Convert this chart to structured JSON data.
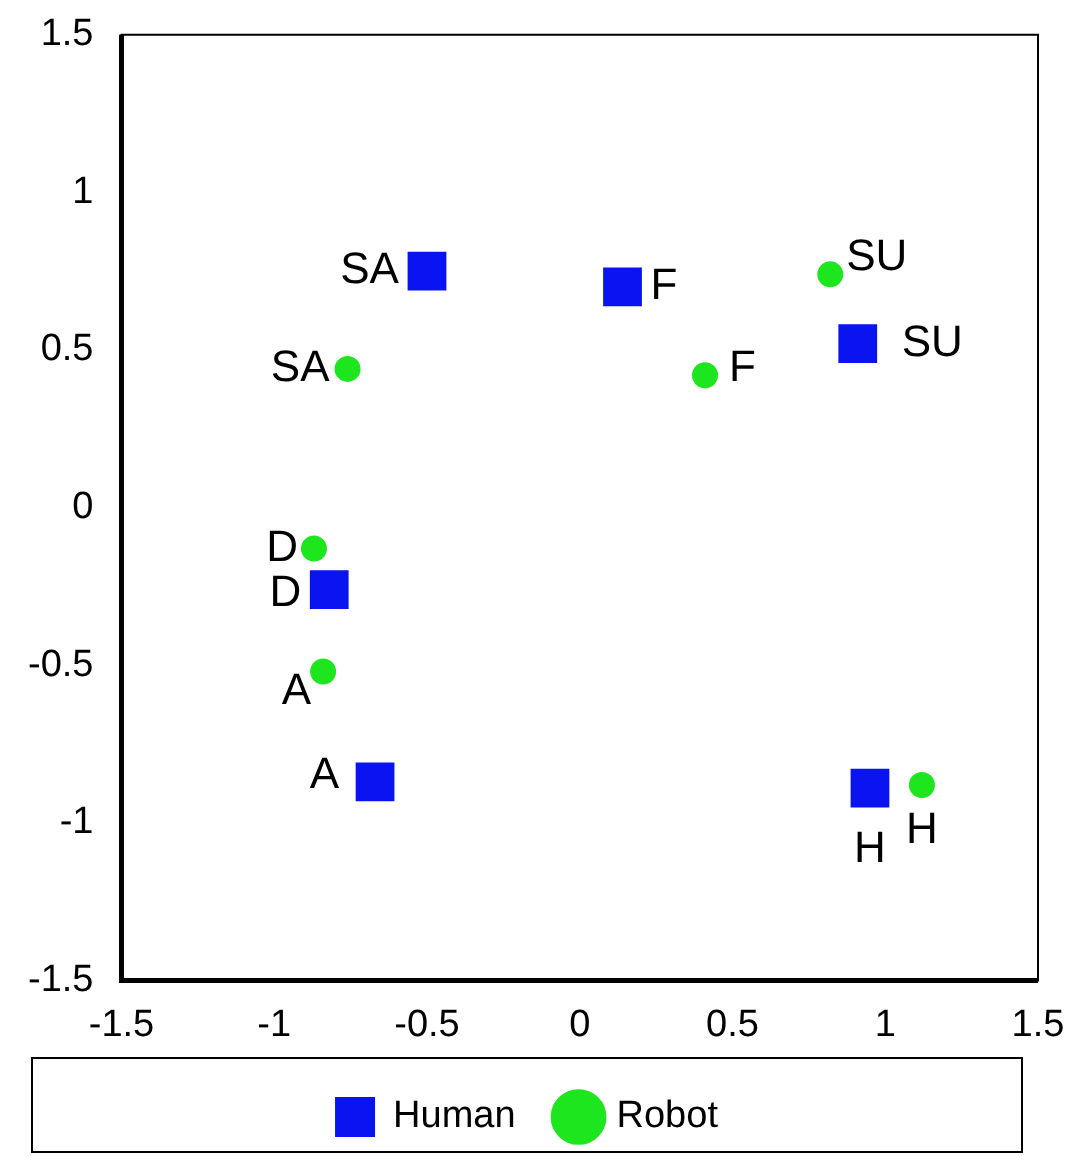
{
  "chart_data": {
    "type": "scatter",
    "xlim": [
      -1.5,
      1.5
    ],
    "ylim": [
      -1.5,
      1.5
    ],
    "xticks": [
      -1.5,
      -1,
      -0.5,
      0,
      0.5,
      1,
      1.5
    ],
    "yticks": [
      -1.5,
      -1,
      -0.5,
      0,
      0.5,
      1,
      1.5
    ],
    "grid": false,
    "legend": "bottom",
    "series": [
      {
        "name": "Human",
        "color": "#0a14f0",
        "marker": "square",
        "x": [
          -0.5,
          0.14,
          0.91,
          -0.82,
          -0.67,
          0.95
        ],
        "values": [
          0.75,
          0.7,
          0.52,
          -0.26,
          -0.87,
          -0.89
        ],
        "value_labels": [
          "SA",
          "F",
          "SU",
          "D",
          "A",
          "H"
        ]
      },
      {
        "name": "Robot",
        "color": "#1ee61e",
        "marker": "circle",
        "x": [
          -0.76,
          0.41,
          0.82,
          -0.87,
          -0.84,
          1.12
        ],
        "values": [
          0.44,
          0.42,
          0.74,
          -0.13,
          -0.52,
          -0.88
        ],
        "value_labels": [
          "SA",
          "F",
          "SU",
          "D",
          "A",
          "H"
        ]
      }
    ]
  }
}
